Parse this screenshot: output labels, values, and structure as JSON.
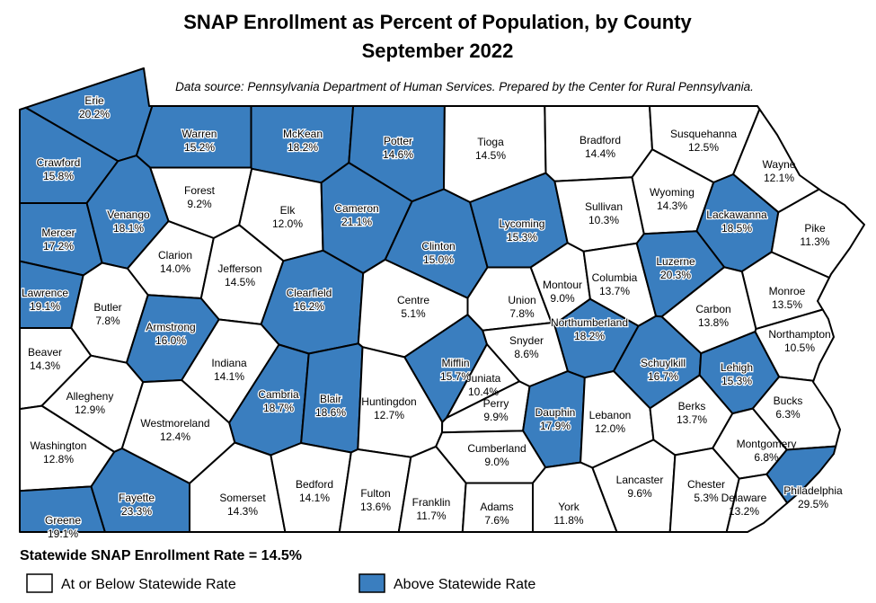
{
  "title": "SNAP Enrollment as Percent of Population, by County",
  "subtitle": "September 2022",
  "source": "Data source: Pennsylvania Department of Human Services. Prepared by the Center for Rural Pennsylvania.",
  "statewide": {
    "label": "Statewide SNAP Enrollment Rate = 14.5%",
    "value": 14.5
  },
  "legend": [
    {
      "label": "At or Below Statewide Rate",
      "color": "#ffffff"
    },
    {
      "label": "Above Statewide Rate",
      "color": "#3a7ebf"
    }
  ],
  "counties": [
    {
      "name": "Erie",
      "value": 20.2,
      "label": "20.2%"
    },
    {
      "name": "Warren",
      "value": 15.2,
      "label": "15.2%"
    },
    {
      "name": "McKean",
      "value": 18.2,
      "label": "18.2%"
    },
    {
      "name": "Potter",
      "value": 14.6,
      "label": "14.6%"
    },
    {
      "name": "Tioga",
      "value": 14.5,
      "label": "14.5%"
    },
    {
      "name": "Bradford",
      "value": 14.4,
      "label": "14.4%"
    },
    {
      "name": "Susquehanna",
      "value": 12.5,
      "label": "12.5%"
    },
    {
      "name": "Wayne",
      "value": 12.1,
      "label": "12.1%"
    },
    {
      "name": "Crawford",
      "value": 15.8,
      "label": "15.8%"
    },
    {
      "name": "Forest",
      "value": 9.2,
      "label": "9.2%"
    },
    {
      "name": "Elk",
      "value": 12.0,
      "label": "12.0%"
    },
    {
      "name": "Cameron",
      "value": 21.1,
      "label": "21.1%"
    },
    {
      "name": "Clinton",
      "value": 15.0,
      "label": "15.0%"
    },
    {
      "name": "Lycoming",
      "value": 15.3,
      "label": "15.3%"
    },
    {
      "name": "Sullivan",
      "value": 10.3,
      "label": "10.3%"
    },
    {
      "name": "Wyoming",
      "value": 14.3,
      "label": "14.3%"
    },
    {
      "name": "Lackawanna",
      "value": 18.5,
      "label": "18.5%"
    },
    {
      "name": "Pike",
      "value": 11.3,
      "label": "11.3%"
    },
    {
      "name": "Mercer",
      "value": 17.2,
      "label": "17.2%"
    },
    {
      "name": "Venango",
      "value": 18.1,
      "label": "18.1%"
    },
    {
      "name": "Clarion",
      "value": 14.0,
      "label": "14.0%"
    },
    {
      "name": "Jefferson",
      "value": 14.5,
      "label": "14.5%"
    },
    {
      "name": "Clearfield",
      "value": 16.2,
      "label": "16.2%"
    },
    {
      "name": "Centre",
      "value": 5.1,
      "label": "5.1%"
    },
    {
      "name": "Union",
      "value": 7.8,
      "label": "7.8%"
    },
    {
      "name": "Montour",
      "value": 9.0,
      "label": "9.0%"
    },
    {
      "name": "Columbia",
      "value": 13.7,
      "label": "13.7%"
    },
    {
      "name": "Luzerne",
      "value": 20.3,
      "label": "20.3%"
    },
    {
      "name": "Monroe",
      "value": 13.5,
      "label": "13.5%"
    },
    {
      "name": "Carbon",
      "value": 13.8,
      "label": "13.8%"
    },
    {
      "name": "Lawrence",
      "value": 19.1,
      "label": "19.1%"
    },
    {
      "name": "Butler",
      "value": 7.8,
      "label": "7.8%"
    },
    {
      "name": "Armstrong",
      "value": 16.0,
      "label": "16.0%"
    },
    {
      "name": "Northumberland",
      "value": 18.2,
      "label": "18.2%"
    },
    {
      "name": "Snyder",
      "value": 8.6,
      "label": "8.6%"
    },
    {
      "name": "Schuylkill",
      "value": 16.7,
      "label": "16.7%"
    },
    {
      "name": "Northampton",
      "value": 10.5,
      "label": "10.5%"
    },
    {
      "name": "Beaver",
      "value": 14.3,
      "label": "14.3%"
    },
    {
      "name": "Indiana",
      "value": 14.1,
      "label": "14.1%"
    },
    {
      "name": "Mifflin",
      "value": 15.7,
      "label": "15.7%"
    },
    {
      "name": "Juniata",
      "value": 10.4,
      "label": "10.4%"
    },
    {
      "name": "Lehigh",
      "value": 15.3,
      "label": "15.3%"
    },
    {
      "name": "Allegheny",
      "value": 12.9,
      "label": "12.9%"
    },
    {
      "name": "Cambria",
      "value": 18.7,
      "label": "18.7%"
    },
    {
      "name": "Blair",
      "value": 18.6,
      "label": "18.6%"
    },
    {
      "name": "Huntingdon",
      "value": 12.7,
      "label": "12.7%"
    },
    {
      "name": "Perry",
      "value": 9.9,
      "label": "9.9%"
    },
    {
      "name": "Dauphin",
      "value": 17.9,
      "label": "17.9%"
    },
    {
      "name": "Lebanon",
      "value": 12.0,
      "label": "12.0%"
    },
    {
      "name": "Berks",
      "value": 13.7,
      "label": "13.7%"
    },
    {
      "name": "Bucks",
      "value": 6.3,
      "label": "6.3%"
    },
    {
      "name": "Westmoreland",
      "value": 12.4,
      "label": "12.4%"
    },
    {
      "name": "Washington",
      "value": 12.8,
      "label": "12.8%"
    },
    {
      "name": "Cumberland",
      "value": 9.0,
      "label": "9.0%"
    },
    {
      "name": "Montgomery",
      "value": 6.8,
      "label": "6.8%"
    },
    {
      "name": "Somerset",
      "value": 14.3,
      "label": "14.3%"
    },
    {
      "name": "Bedford",
      "value": 14.1,
      "label": "14.1%"
    },
    {
      "name": "Fulton",
      "value": 13.6,
      "label": "13.6%"
    },
    {
      "name": "Franklin",
      "value": 11.7,
      "label": "11.7%"
    },
    {
      "name": "Adams",
      "value": 7.6,
      "label": "7.6%"
    },
    {
      "name": "York",
      "value": 11.8,
      "label": "11.8%"
    },
    {
      "name": "Lancaster",
      "value": 9.6,
      "label": "9.6%"
    },
    {
      "name": "Chester",
      "value": 5.3,
      "label": "5.3%"
    },
    {
      "name": "Delaware",
      "value": 13.2,
      "label": "13.2%"
    },
    {
      "name": "Philadelphia",
      "value": 29.5,
      "label": "29.5%"
    },
    {
      "name": "Greene",
      "value": 19.1,
      "label": "19.1%"
    },
    {
      "name": "Fayette",
      "value": 23.3,
      "label": "23.3%"
    }
  ]
}
